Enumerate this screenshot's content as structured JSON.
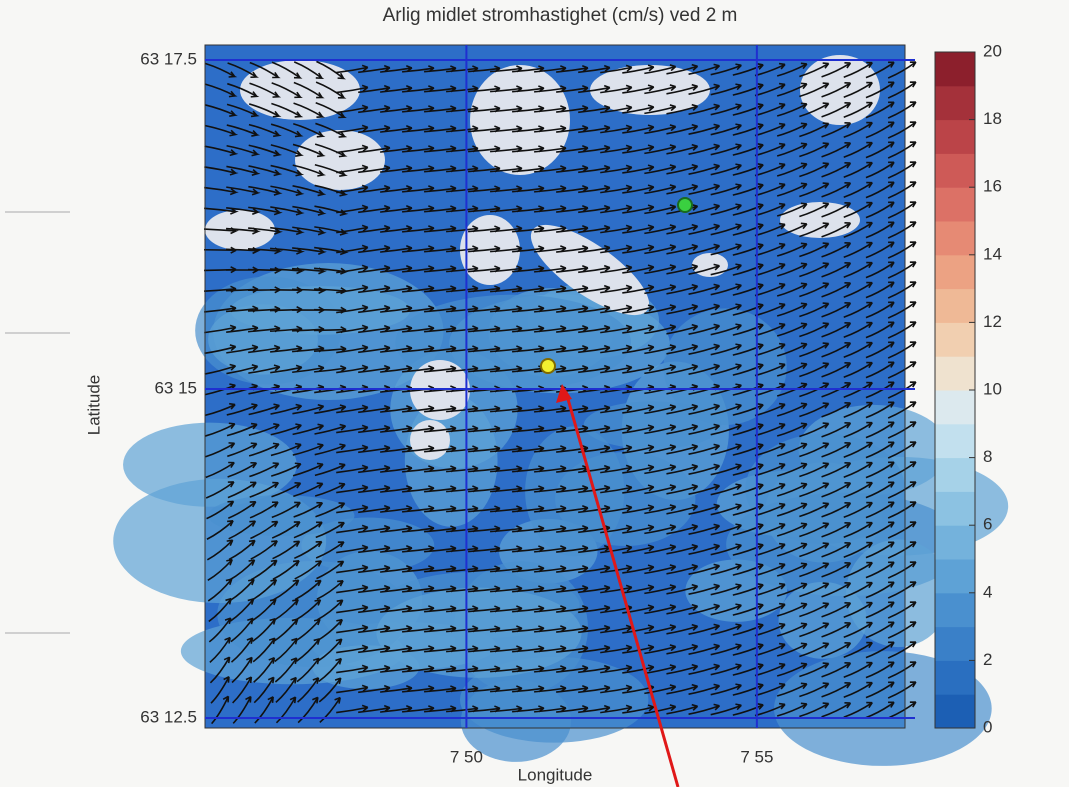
{
  "chart_data": {
    "type": "map",
    "title": "Arlig midlet stromhastighet (cm/s) ved 2 m",
    "xlabel": "Longitude",
    "ylabel": "Latitude",
    "xlim": [
      7.758333,
      7.959167
    ],
    "xticks": [
      {
        "value": 7.833333,
        "label": "7 50"
      },
      {
        "value": 7.916667,
        "label": "7 55"
      }
    ],
    "ylim": [
      63.208333,
      63.291667
    ],
    "yticks": [
      {
        "value": 63.208333,
        "label": "63 12.5"
      },
      {
        "value": 63.25,
        "label": "63 15"
      },
      {
        "value": 63.291667,
        "label": "63 17.5"
      }
    ],
    "grid": true,
    "grid_color": "#1f2fd0",
    "colorbar": {
      "lim": [
        0,
        20
      ],
      "ticks": [
        0,
        2,
        4,
        6,
        8,
        10,
        12,
        14,
        16,
        18,
        20
      ],
      "colors": [
        "#1c5fb4",
        "#2a6fc0",
        "#3a80c8",
        "#4a90cf",
        "#5ea2d6",
        "#74b2dc",
        "#8cc2e2",
        "#a6d2e8",
        "#c2e0ee",
        "#dce9ee",
        "#efe2cf",
        "#f1cfb0",
        "#efb996",
        "#eca283",
        "#e68a74",
        "#dc7166",
        "#ce5a57",
        "#bb4448",
        "#a4313a",
        "#8c1f2c"
      ]
    }
  }
}
